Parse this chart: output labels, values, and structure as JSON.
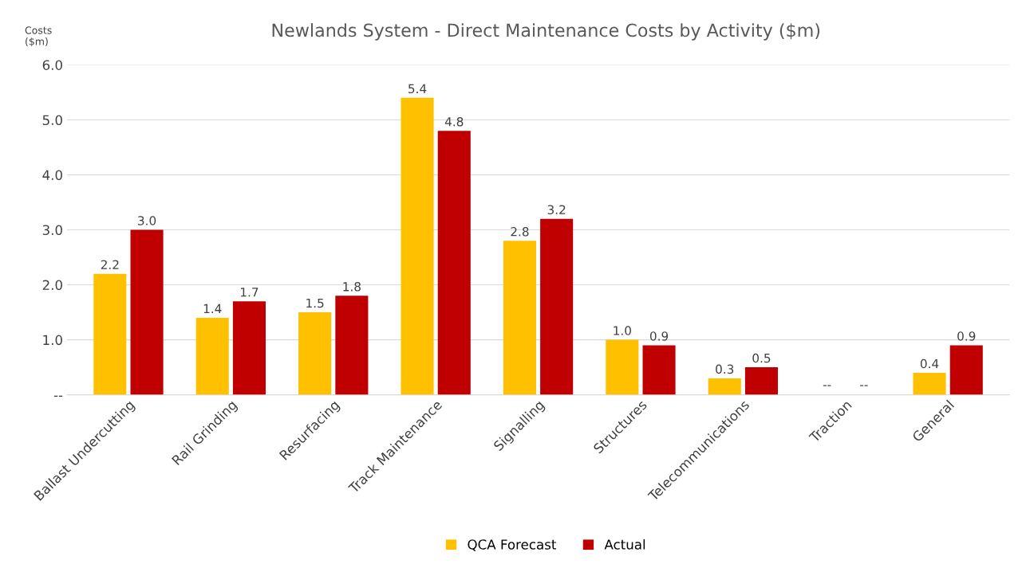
{
  "chart_data": {
    "type": "bar",
    "title": "Newlands System - Direct Maintenance Costs by Activity ($m)",
    "ylabel": "Costs\n($m)",
    "categories": [
      "Ballast Undercutting",
      "Rail Grinding",
      "Resurfacing",
      "Track Maintenance",
      "Signalling",
      "Structures",
      "Telecommunications",
      "Traction",
      "General"
    ],
    "series": [
      {
        "name": "QCA Forecast",
        "color": "#ffc000",
        "values": [
          2.2,
          1.4,
          1.5,
          5.4,
          2.8,
          1.0,
          0.3,
          0,
          0.4
        ],
        "value_labels": [
          "2.2",
          "1.4",
          "1.5",
          "5.4",
          "2.8",
          "1.0",
          "0.3",
          null,
          "0.4"
        ]
      },
      {
        "name": "Actual",
        "color": "#c00000",
        "values": [
          3.0,
          1.7,
          1.8,
          4.8,
          3.2,
          0.9,
          0.5,
          0,
          0.9
        ],
        "value_labels": [
          "3.0",
          "1.7",
          "1.8",
          "4.8",
          "3.2",
          "0.9",
          "0.5",
          null,
          "0.9"
        ]
      }
    ],
    "annotations": [
      "--",
      "--"
    ],
    "ylim": [
      0,
      6
    ],
    "yticks": [
      {
        "value": 0,
        "label": "--"
      },
      {
        "value": 1,
        "label": "1.0"
      },
      {
        "value": 2,
        "label": "2.0"
      },
      {
        "value": 3,
        "label": "3.0"
      },
      {
        "value": 4,
        "label": "4.0"
      },
      {
        "value": 5,
        "label": "5.0"
      },
      {
        "value": 6,
        "label": "6.0"
      }
    ],
    "grid": "y",
    "legend": "bottom"
  }
}
